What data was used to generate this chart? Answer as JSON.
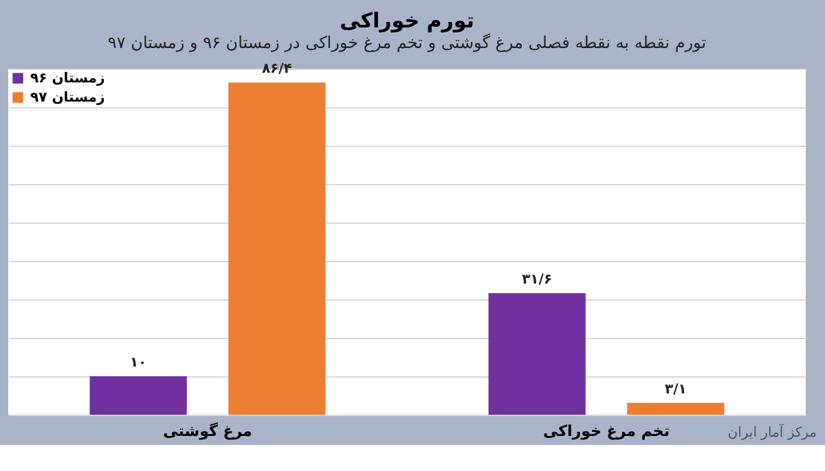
{
  "chart_data": {
    "type": "bar",
    "title": "تورم خوراکی",
    "subtitle": "تورم نقطه به نقطه فصلی مرغ گوشتی و تخم مرغ خوراکی در زمستان ۹۶ و زمستان ۹۷",
    "categories": [
      "مرغ گوشتی",
      "تخم مرغ خوراکی"
    ],
    "series": [
      {
        "name": "زمستان ۹۶",
        "color": "#7030a0",
        "values": [
          10,
          31.6
        ],
        "value_labels": [
          "۱۰",
          "۳۱/۶"
        ]
      },
      {
        "name": "زمستان ۹۷",
        "color": "#ed7d31",
        "values": [
          86.4,
          3.1
        ],
        "value_labels": [
          "۸۶/۴",
          "۳/۱"
        ]
      }
    ],
    "grid": "y",
    "legend": "top left",
    "tick_labels": "x",
    "annotations": [
      "مرکز آمار ایران"
    ]
  }
}
